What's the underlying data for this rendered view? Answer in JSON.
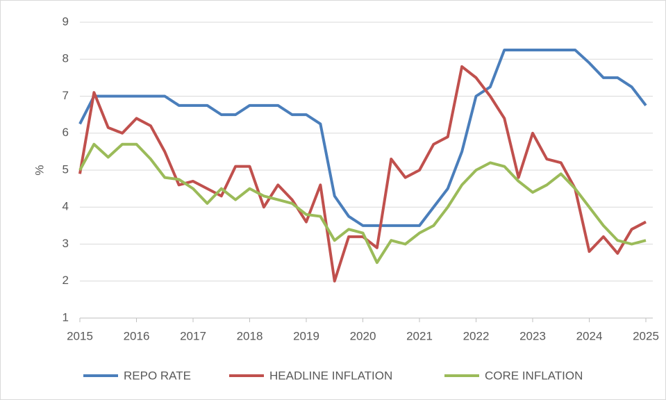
{
  "chart_data": {
    "type": "line",
    "y_label": "%",
    "x": [
      2015,
      2015.25,
      2015.5,
      2015.75,
      2016,
      2016.25,
      2016.5,
      2016.75,
      2017,
      2017.25,
      2017.5,
      2017.75,
      2018,
      2018.25,
      2018.5,
      2018.75,
      2019,
      2019.25,
      2019.5,
      2019.75,
      2020,
      2020.25,
      2020.5,
      2020.75,
      2021,
      2021.25,
      2021.5,
      2021.75,
      2022,
      2022.25,
      2022.5,
      2022.75,
      2023,
      2023.25,
      2023.5,
      2023.75,
      2024,
      2024.25,
      2024.5,
      2024.75,
      2025
    ],
    "series": [
      {
        "name": "REPO RATE",
        "color": "#4a7ebb",
        "values": [
          6.25,
          7.0,
          7.0,
          7.0,
          7.0,
          7.0,
          7.0,
          6.75,
          6.75,
          6.75,
          6.5,
          6.5,
          6.75,
          6.75,
          6.75,
          6.5,
          6.5,
          6.25,
          4.3,
          3.75,
          3.5,
          3.5,
          3.5,
          3.5,
          3.5,
          4.0,
          4.5,
          5.5,
          7.0,
          7.25,
          8.25,
          8.25,
          8.25,
          8.25,
          8.25,
          8.25,
          7.9,
          7.5,
          7.5,
          7.25,
          6.75
        ]
      },
      {
        "name": "HEADLINE INFLATION",
        "color": "#c0504d",
        "values": [
          4.9,
          7.1,
          6.15,
          6.0,
          6.4,
          6.2,
          5.5,
          4.6,
          4.7,
          4.5,
          4.3,
          5.1,
          5.1,
          4.0,
          4.6,
          4.2,
          3.6,
          4.6,
          2.0,
          3.2,
          3.2,
          2.9,
          5.3,
          4.8,
          5.0,
          5.7,
          5.9,
          7.8,
          7.5,
          7.0,
          6.4,
          4.8,
          6.0,
          5.3,
          5.2,
          4.5,
          2.8,
          3.2,
          2.75,
          3.4,
          3.6
        ]
      },
      {
        "name": "CORE INFLATION",
        "color": "#9bbb59",
        "values": [
          5.0,
          5.7,
          5.35,
          5.7,
          5.7,
          5.3,
          4.8,
          4.75,
          4.5,
          4.1,
          4.5,
          4.2,
          4.5,
          4.3,
          4.2,
          4.1,
          3.8,
          3.75,
          3.1,
          3.4,
          3.3,
          2.5,
          3.1,
          3.0,
          3.3,
          3.5,
          4.0,
          4.6,
          5.0,
          5.2,
          5.1,
          4.7,
          4.4,
          4.6,
          4.9,
          4.5,
          4.0,
          3.5,
          3.1,
          3.0,
          3.1
        ]
      }
    ],
    "xlim": [
      2015,
      2025
    ],
    "xticks": [
      2015,
      2016,
      2017,
      2018,
      2019,
      2020,
      2021,
      2022,
      2023,
      2024,
      2025
    ],
    "ylim": [
      1,
      9
    ],
    "yticks": [
      1,
      2,
      3,
      4,
      5,
      6,
      7,
      8,
      9
    ],
    "grid": true,
    "legend": "bottom"
  }
}
